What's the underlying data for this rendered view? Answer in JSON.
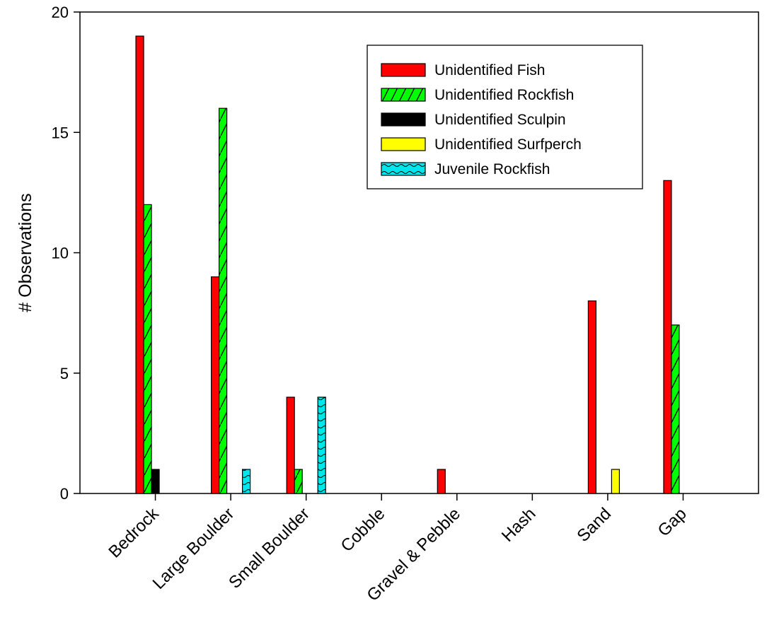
{
  "chart_data": {
    "type": "bar",
    "title": "",
    "xlabel": "",
    "ylabel": "# Observations",
    "ylim": [
      0,
      20
    ],
    "yticks": [
      0,
      5,
      10,
      15,
      20
    ],
    "grid": false,
    "legend_position": "top-right",
    "categories": [
      "Bedrock",
      "Large Boulder",
      "Small Boulder",
      "Cobble",
      "Gravel & Pebble",
      "Hash",
      "Sand",
      "Gap"
    ],
    "series": [
      {
        "name": "Unidentified Fish",
        "color": "#ff0000",
        "pattern": "solid",
        "values": [
          19,
          9,
          4,
          0,
          1,
          0,
          8,
          13
        ]
      },
      {
        "name": "Unidentified Rockfish",
        "color": "#00ff00",
        "pattern": "diagonal-hatch",
        "values": [
          12,
          16,
          1,
          0,
          0,
          0,
          0,
          7
        ]
      },
      {
        "name": "Unidentified Sculpin",
        "color": "#000000",
        "pattern": "solid",
        "values": [
          1,
          0,
          0,
          0,
          0,
          0,
          0,
          0
        ]
      },
      {
        "name": "Unidentified Surfperch",
        "color": "#ffff00",
        "pattern": "solid",
        "values": [
          0,
          0,
          0,
          0,
          0,
          0,
          1,
          0
        ]
      },
      {
        "name": "Juvenile Rockfish",
        "color": "#00e5ee",
        "pattern": "wave",
        "values": [
          0,
          1,
          4,
          0,
          0,
          0,
          0,
          0
        ]
      }
    ]
  }
}
